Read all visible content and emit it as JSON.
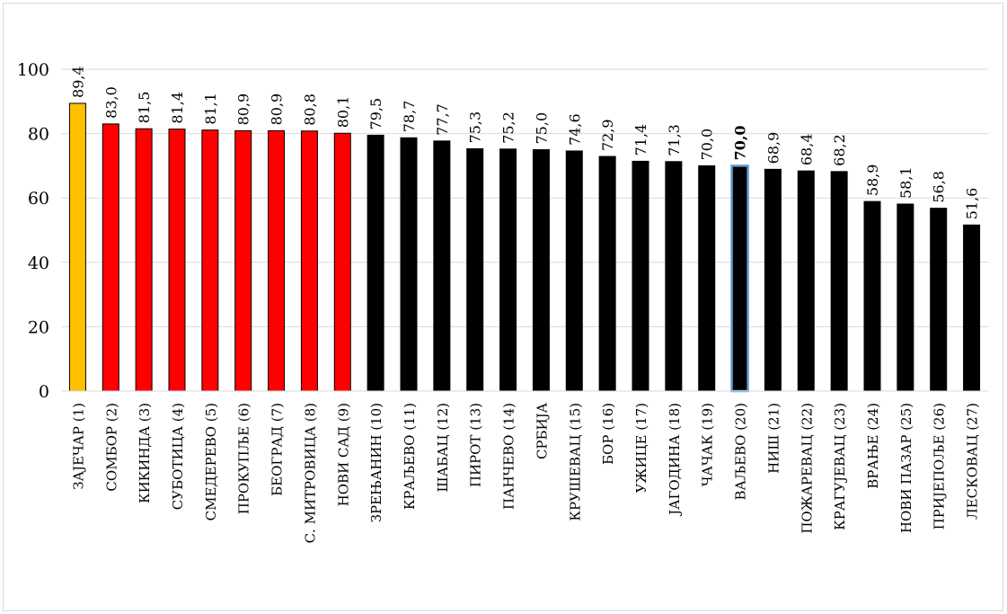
{
  "chart_data": {
    "type": "bar",
    "categories": [
      "ЗАЈЕЧАР (1)",
      "СОМБОР (2)",
      "КИКИНДА (3)",
      "СУБОТИЦА (4)",
      "СМЕДЕРЕВО (5)",
      "ПРОКУПЉЕ (6)",
      "БЕОГРАД (7)",
      "С. МИТРОВИЦА (8)",
      "НОВИ САД (9)",
      "ЗРЕЊАНИН (10)",
      "КРАЉЕВО (11)",
      "ШАБАЦ (12)",
      "ПИРОТ (13)",
      "ПАНЧЕВО (14)",
      "СРБИЈА",
      "КРУШЕВАЦ (15)",
      "БОР (16)",
      "УЖИЦЕ (17)",
      "ЈАГОДИНА (18)",
      "ЧАЧАК (19)",
      "ВАЉЕВО (20)",
      "НИШ (21)",
      "ПОЖАРЕВАЦ (22)",
      "КРАГУЈЕВАЦ (23)",
      "ВРАЊЕ (24)",
      "НОВИ ПАЗАР (25)",
      "ПРИЈЕПОЉЕ (26)",
      "ЛЕСКОВАЦ (27)"
    ],
    "values": [
      89.4,
      83.0,
      81.5,
      81.4,
      81.1,
      80.9,
      80.9,
      80.8,
      80.1,
      79.5,
      78.7,
      77.7,
      75.3,
      75.2,
      75.0,
      74.6,
      72.9,
      71.4,
      71.3,
      70.0,
      70.0,
      68.9,
      68.4,
      68.2,
      58.9,
      58.1,
      56.8,
      51.6
    ],
    "data_labels": [
      "89,4",
      "83,0",
      "81,5",
      "81,4",
      "81,1",
      "80,9",
      "80,9",
      "80,8",
      "80,1",
      "79,5",
      "78,7",
      "77,7",
      "75,3",
      "75,2",
      "75,0",
      "74,6",
      "72,9",
      "71,4",
      "71,3",
      "70,0",
      "70,0",
      "68,9",
      "68,4",
      "68,2",
      "58,9",
      "58,1",
      "56,8",
      "51,6"
    ],
    "bar_colors": [
      "#FFC000",
      "#FF0000",
      "#FF0000",
      "#FF0000",
      "#FF0000",
      "#FF0000",
      "#FF0000",
      "#FF0000",
      "#FF0000",
      "#000000",
      "#000000",
      "#000000",
      "#000000",
      "#000000",
      "#000000",
      "#000000",
      "#000000",
      "#000000",
      "#000000",
      "#000000",
      "#000000",
      "#000000",
      "#000000",
      "#000000",
      "#000000",
      "#000000",
      "#000000",
      "#000000"
    ],
    "highlight_index": 20,
    "highlight_outline_color": "#5B9BD5",
    "ylim": [
      0,
      100
    ],
    "yticks": [
      0,
      20,
      40,
      60,
      80,
      100
    ],
    "grid": true,
    "legend": false,
    "title": "",
    "xlabel": "",
    "ylabel": ""
  }
}
